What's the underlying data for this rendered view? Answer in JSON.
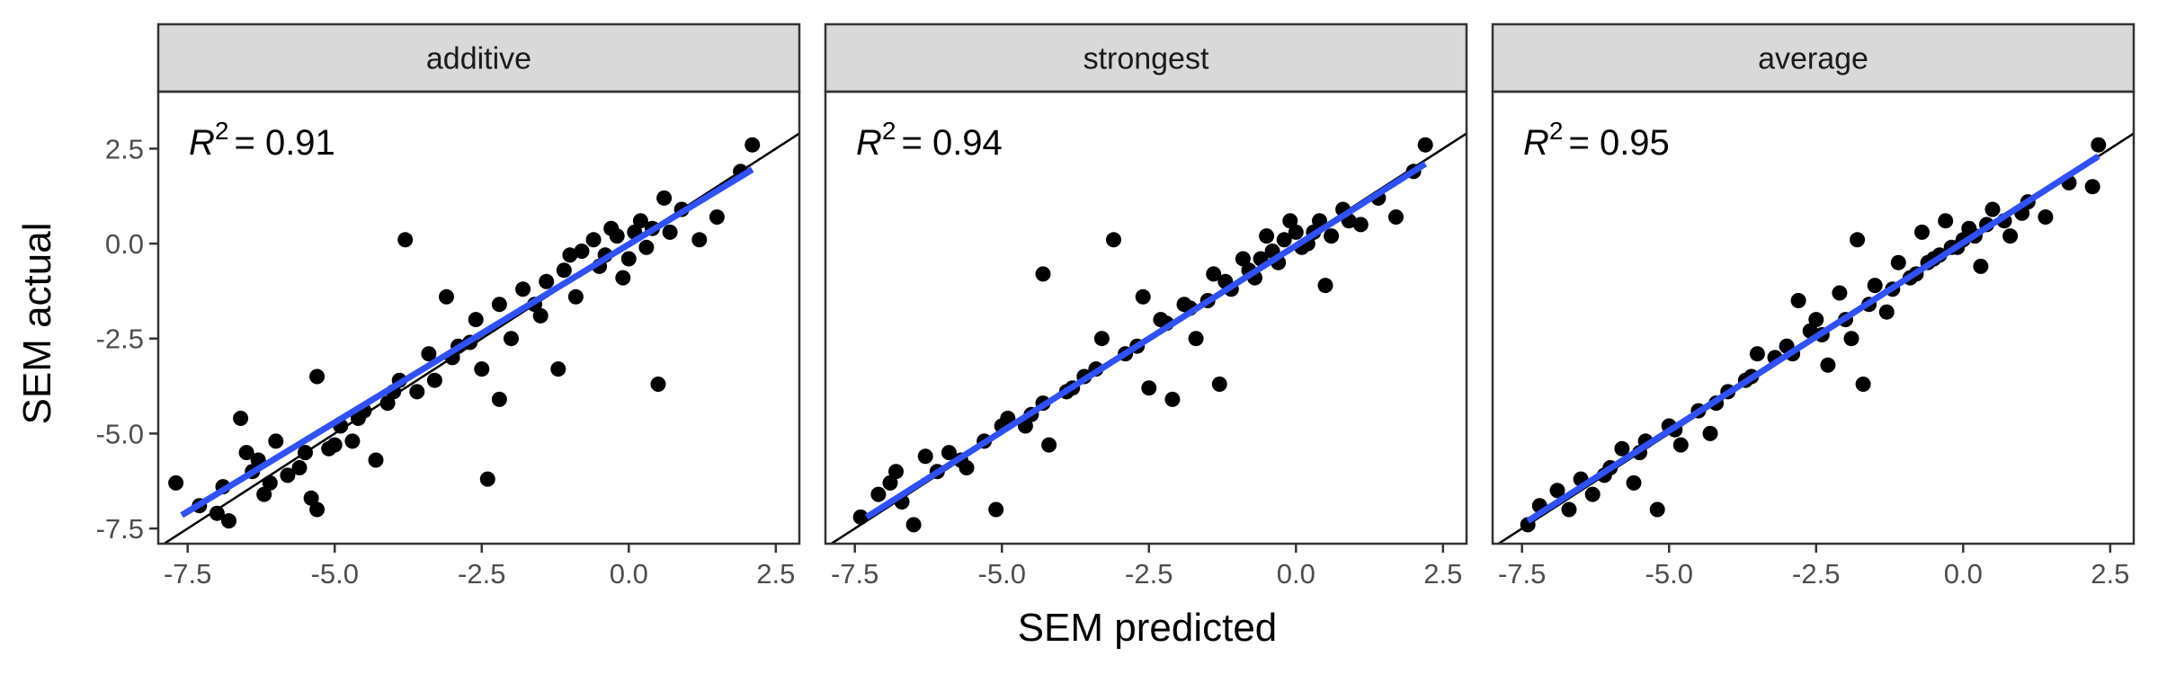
{
  "chart_data": {
    "type": "scatter",
    "xlabel": "SEM predicted",
    "ylabel": "SEM actual",
    "xlim": [
      -8.0,
      2.9
    ],
    "ylim": [
      -7.9,
      4.0
    ],
    "x_ticks": [
      -7.5,
      -5.0,
      -2.5,
      0.0,
      2.5
    ],
    "x_tick_labels": [
      "-7.5",
      "-5.0",
      "-2.5",
      "0.0",
      "2.5"
    ],
    "y_ticks": [
      -7.5,
      -5.0,
      -2.5,
      0.0,
      2.5
    ],
    "y_tick_labels": [
      "-7.5",
      "-5.0",
      "-2.5",
      "0.0",
      "2.5"
    ],
    "grid": false,
    "identity_line": true,
    "colors": {
      "points": "#000000",
      "fit_line": "#3050F8",
      "identity_line": "#000000",
      "strip_bg": "#D9D9D9"
    },
    "panels": [
      {
        "strip": "additive",
        "r2_label": "R",
        "r2_exp": "2",
        "r2_value": "= 0.91",
        "fit": {
          "x": [
            -7.6,
            2.1
          ],
          "y": [
            -7.15,
            1.95
          ]
        },
        "points": [
          [
            -7.7,
            -6.3
          ],
          [
            -7.3,
            -6.9
          ],
          [
            -7.0,
            -7.1
          ],
          [
            -6.9,
            -6.4
          ],
          [
            -6.8,
            -7.3
          ],
          [
            -6.6,
            -4.6
          ],
          [
            -6.5,
            -5.5
          ],
          [
            -6.4,
            -6.0
          ],
          [
            -6.2,
            -6.6
          ],
          [
            -6.0,
            -5.2
          ],
          [
            -5.8,
            -6.1
          ],
          [
            -5.6,
            -5.9
          ],
          [
            -5.4,
            -6.7
          ],
          [
            -5.3,
            -7.0
          ],
          [
            -5.3,
            -3.5
          ],
          [
            -5.1,
            -5.4
          ],
          [
            -4.9,
            -4.8
          ],
          [
            -4.7,
            -5.2
          ],
          [
            -4.5,
            -4.4
          ],
          [
            -4.3,
            -5.7
          ],
          [
            -4.1,
            -4.2
          ],
          [
            -3.9,
            -3.6
          ],
          [
            -3.8,
            0.1
          ],
          [
            -3.6,
            -3.9
          ],
          [
            -3.4,
            -2.9
          ],
          [
            -3.1,
            -1.4
          ],
          [
            -2.9,
            -2.7
          ],
          [
            -2.6,
            -2.0
          ],
          [
            -2.5,
            -3.3
          ],
          [
            -2.4,
            -6.2
          ],
          [
            -2.2,
            -1.6
          ],
          [
            -2.2,
            -4.1
          ],
          [
            -2.0,
            -2.5
          ],
          [
            -1.8,
            -1.2
          ],
          [
            -1.5,
            -1.9
          ],
          [
            -1.2,
            -3.3
          ],
          [
            -1.1,
            -0.7
          ],
          [
            -0.9,
            -1.4
          ],
          [
            -0.8,
            -0.2
          ],
          [
            -0.6,
            0.1
          ],
          [
            -0.5,
            -0.6
          ],
          [
            -0.3,
            0.4
          ],
          [
            -0.1,
            -0.9
          ],
          [
            0.1,
            0.3
          ],
          [
            0.3,
            -0.1
          ],
          [
            0.5,
            -3.7
          ],
          [
            0.6,
            1.2
          ],
          [
            0.9,
            0.9
          ],
          [
            1.2,
            0.1
          ],
          [
            1.5,
            0.7
          ],
          [
            1.9,
            1.9
          ],
          [
            2.1,
            2.6
          ],
          [
            -6.1,
            -6.3
          ],
          [
            -6.3,
            -5.7
          ],
          [
            -5.5,
            -5.5
          ],
          [
            -5.0,
            -5.3
          ],
          [
            -4.6,
            -4.6
          ],
          [
            -4.0,
            -3.9
          ],
          [
            -3.3,
            -3.6
          ],
          [
            -3.0,
            -3.0
          ],
          [
            -2.7,
            -2.6
          ],
          [
            -1.6,
            -1.6
          ],
          [
            -1.4,
            -1.0
          ],
          [
            -1.0,
            -0.3
          ],
          [
            -0.4,
            -0.3
          ],
          [
            -0.2,
            0.2
          ],
          [
            0.0,
            -0.4
          ],
          [
            0.2,
            0.6
          ],
          [
            0.4,
            0.4
          ],
          [
            0.7,
            0.3
          ]
        ]
      },
      {
        "strip": "strongest",
        "r2_label": "R",
        "r2_exp": "2",
        "r2_value": "= 0.94",
        "fit": {
          "x": [
            -7.3,
            2.2
          ],
          "y": [
            -7.2,
            2.1
          ]
        },
        "points": [
          [
            -7.4,
            -7.2
          ],
          [
            -7.1,
            -6.6
          ],
          [
            -6.9,
            -6.3
          ],
          [
            -6.7,
            -6.8
          ],
          [
            -6.5,
            -7.4
          ],
          [
            -6.3,
            -5.6
          ],
          [
            -6.1,
            -6.0
          ],
          [
            -5.9,
            -5.5
          ],
          [
            -5.6,
            -5.9
          ],
          [
            -5.3,
            -5.2
          ],
          [
            -5.1,
            -7.0
          ],
          [
            -4.9,
            -4.6
          ],
          [
            -4.6,
            -4.8
          ],
          [
            -4.3,
            -4.2
          ],
          [
            -4.2,
            -5.3
          ],
          [
            -3.9,
            -3.9
          ],
          [
            -4.3,
            -0.8
          ],
          [
            -3.6,
            -3.5
          ],
          [
            -3.3,
            -2.5
          ],
          [
            -3.1,
            0.1
          ],
          [
            -2.9,
            -2.9
          ],
          [
            -2.6,
            -1.4
          ],
          [
            -2.5,
            -3.8
          ],
          [
            -2.3,
            -2.0
          ],
          [
            -2.1,
            -4.1
          ],
          [
            -1.9,
            -1.6
          ],
          [
            -1.7,
            -2.5
          ],
          [
            -1.4,
            -0.8
          ],
          [
            -1.3,
            -3.7
          ],
          [
            -1.1,
            -1.2
          ],
          [
            -0.9,
            -0.4
          ],
          [
            -0.7,
            -0.9
          ],
          [
            -0.5,
            0.2
          ],
          [
            -0.3,
            -0.5
          ],
          [
            -0.1,
            0.6
          ],
          [
            0.1,
            -0.1
          ],
          [
            0.3,
            0.3
          ],
          [
            0.5,
            -1.1
          ],
          [
            0.8,
            0.9
          ],
          [
            1.1,
            0.5
          ],
          [
            1.4,
            1.2
          ],
          [
            1.7,
            0.7
          ],
          [
            2.0,
            1.9
          ],
          [
            2.2,
            2.6
          ],
          [
            -6.8,
            -6.0
          ],
          [
            -5.7,
            -5.7
          ],
          [
            -5.0,
            -4.8
          ],
          [
            -4.5,
            -4.5
          ],
          [
            -3.8,
            -3.8
          ],
          [
            -3.4,
            -3.3
          ],
          [
            -2.7,
            -2.7
          ],
          [
            -2.2,
            -2.1
          ],
          [
            -1.8,
            -1.7
          ],
          [
            -1.5,
            -1.5
          ],
          [
            -1.2,
            -1.0
          ],
          [
            -0.8,
            -0.7
          ],
          [
            -0.6,
            -0.4
          ],
          [
            -0.4,
            -0.2
          ],
          [
            -0.2,
            0.1
          ],
          [
            0.0,
            0.3
          ],
          [
            0.2,
            0.0
          ],
          [
            0.4,
            0.6
          ],
          [
            0.6,
            0.2
          ],
          [
            0.9,
            0.6
          ]
        ]
      },
      {
        "strip": "average",
        "r2_label": "R",
        "r2_exp": "2",
        "r2_value": "= 0.95",
        "fit": {
          "x": [
            -7.4,
            2.3
          ],
          "y": [
            -7.3,
            2.3
          ]
        },
        "points": [
          [
            -7.4,
            -7.4
          ],
          [
            -7.2,
            -6.9
          ],
          [
            -6.9,
            -6.5
          ],
          [
            -6.7,
            -7.0
          ],
          [
            -6.5,
            -6.2
          ],
          [
            -6.3,
            -6.6
          ],
          [
            -6.0,
            -5.9
          ],
          [
            -5.8,
            -5.4
          ],
          [
            -5.6,
            -6.3
          ],
          [
            -5.4,
            -5.2
          ],
          [
            -5.2,
            -7.0
          ],
          [
            -5.0,
            -4.8
          ],
          [
            -4.8,
            -5.3
          ],
          [
            -4.5,
            -4.4
          ],
          [
            -4.3,
            -5.0
          ],
          [
            -4.0,
            -3.9
          ],
          [
            -3.7,
            -3.6
          ],
          [
            -3.5,
            -2.9
          ],
          [
            -3.2,
            -3.0
          ],
          [
            -3.0,
            -2.7
          ],
          [
            -2.8,
            -1.5
          ],
          [
            -2.6,
            -2.3
          ],
          [
            -2.5,
            -2.0
          ],
          [
            -2.3,
            -3.2
          ],
          [
            -2.1,
            -1.3
          ],
          [
            -1.9,
            -2.5
          ],
          [
            -1.8,
            0.1
          ],
          [
            -1.7,
            -3.7
          ],
          [
            -1.5,
            -1.1
          ],
          [
            -1.3,
            -1.8
          ],
          [
            -1.1,
            -0.5
          ],
          [
            -0.9,
            -0.9
          ],
          [
            -0.7,
            0.3
          ],
          [
            -0.5,
            -0.4
          ],
          [
            -0.3,
            0.6
          ],
          [
            -0.1,
            -0.1
          ],
          [
            0.1,
            0.4
          ],
          [
            0.3,
            -0.6
          ],
          [
            0.5,
            0.9
          ],
          [
            0.8,
            0.2
          ],
          [
            1.1,
            1.1
          ],
          [
            1.4,
            0.7
          ],
          [
            1.8,
            1.6
          ],
          [
            2.2,
            1.5
          ],
          [
            2.3,
            2.6
          ],
          [
            -6.1,
            -6.1
          ],
          [
            -5.5,
            -5.5
          ],
          [
            -4.9,
            -4.9
          ],
          [
            -4.2,
            -4.2
          ],
          [
            -3.6,
            -3.5
          ],
          [
            -2.9,
            -2.9
          ],
          [
            -2.4,
            -2.4
          ],
          [
            -2.0,
            -2.0
          ],
          [
            -1.6,
            -1.6
          ],
          [
            -1.2,
            -1.2
          ],
          [
            -0.8,
            -0.8
          ],
          [
            -0.6,
            -0.5
          ],
          [
            -0.4,
            -0.3
          ],
          [
            -0.2,
            -0.1
          ],
          [
            0.0,
            0.1
          ],
          [
            0.2,
            0.2
          ],
          [
            0.4,
            0.5
          ],
          [
            0.7,
            0.6
          ],
          [
            1.0,
            0.8
          ]
        ]
      }
    ]
  }
}
